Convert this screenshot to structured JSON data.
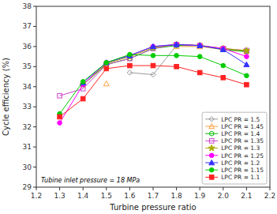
{
  "chart_data": {
    "type": "line",
    "xlabel": "Turbine pressure ratio",
    "ylabel": "Cycle efficiency (%)",
    "annotation": "Tubine inlet pressure = 18 MPa",
    "xlim": [
      1.2,
      2.2
    ],
    "ylim": [
      29,
      38
    ],
    "xticks": [
      1.2,
      1.3,
      1.4,
      1.5,
      1.6,
      1.7,
      1.8,
      1.9,
      {
        "value": 2.0,
        "label": "2.0"
      },
      2.1,
      2.2
    ],
    "yticks": [
      29,
      30,
      31,
      32,
      33,
      34,
      35,
      36,
      37,
      38
    ],
    "grid": false,
    "legend": "lower right",
    "x": [
      1.3,
      1.4,
      1.5,
      1.6,
      1.7,
      1.8,
      1.9,
      2.0,
      2.1
    ],
    "series": [
      {
        "name": "LPC PR = 1.5",
        "color": "#999999",
        "marker": "diamond-open",
        "values": [
          null,
          null,
          null,
          34.7,
          34.6,
          36.05,
          36.05,
          35.85,
          35.75
        ]
      },
      {
        "name": "LPC PR = 1.45",
        "color": "#FFA040",
        "marker": "triangle-open",
        "values": [
          null,
          null,
          34.15,
          null,
          null,
          36.0,
          36.0,
          35.85,
          35.75
        ]
      },
      {
        "name": "LPC PR = 1.4",
        "color": "#00BB00",
        "marker": "circle-open",
        "values": [
          null,
          34.1,
          35.1,
          35.4,
          35.9,
          36.05,
          36.05,
          35.85,
          35.75
        ]
      },
      {
        "name": "LPC PR = 1.35",
        "color": "#CC44CC",
        "marker": "square-open",
        "values": [
          33.55,
          33.9,
          35.1,
          35.4,
          35.9,
          36.1,
          36.05,
          35.9,
          35.8
        ]
      },
      {
        "name": "LPC PR = 1.3",
        "color": "#AAAA00",
        "marker": "star",
        "values": [
          null,
          34.1,
          35.15,
          35.5,
          35.95,
          36.1,
          36.05,
          35.9,
          35.8
        ]
      },
      {
        "name": "LPC PR = 1.25",
        "color": "#FF00FF",
        "marker": "circle",
        "values": [
          32.2,
          34.1,
          35.2,
          35.55,
          36.0,
          36.1,
          36.05,
          35.9,
          35.5
        ]
      },
      {
        "name": "LPC PR = 1.2",
        "color": "#3333FF",
        "marker": "triangle",
        "values": [
          null,
          34.2,
          35.2,
          35.55,
          36.0,
          36.1,
          36.05,
          35.85,
          35.1
        ]
      },
      {
        "name": "LPC PR = 1.15",
        "color": "#00CC00",
        "marker": "circle",
        "values": [
          32.65,
          34.25,
          35.2,
          35.6,
          35.55,
          35.55,
          35.5,
          35.05,
          34.55
        ]
      },
      {
        "name": "LPC PR = 1.1",
        "color": "#FF2222",
        "marker": "square",
        "values": [
          32.5,
          33.4,
          34.9,
          35.05,
          35.05,
          35.0,
          34.7,
          34.45,
          34.1
        ]
      }
    ]
  }
}
